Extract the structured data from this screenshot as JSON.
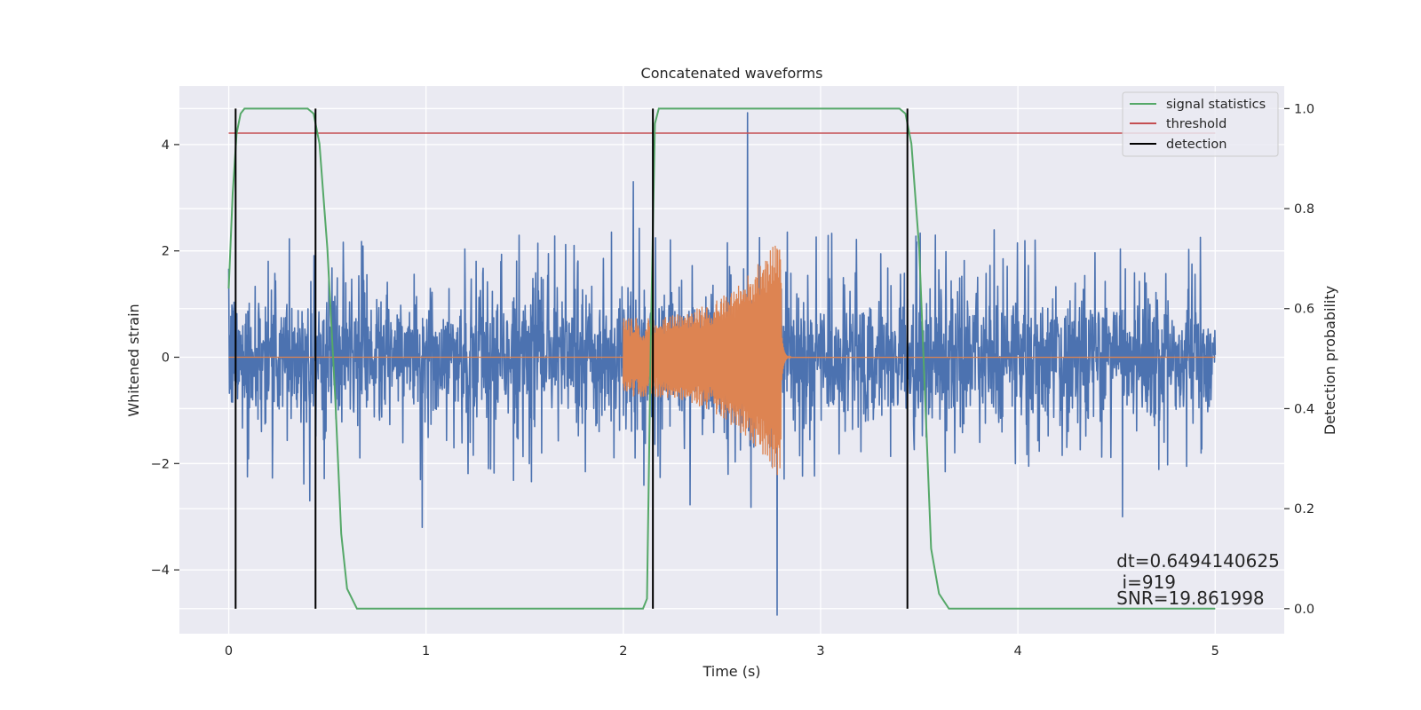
{
  "chart_data": {
    "type": "line",
    "title": "Concatenated waveforms",
    "xlabel": "Time (s)",
    "ylabel_left": "Whitened strain",
    "ylabel_right": "Detection probability",
    "xlim": [
      -0.25,
      5.35
    ],
    "ylim_left": [
      -5.2,
      5.1
    ],
    "ylim_right": [
      -0.05,
      1.045
    ],
    "x_ticks": [
      0,
      1,
      2,
      3,
      4,
      5
    ],
    "y_ticks_left": [
      -4,
      -2,
      0,
      2,
      4
    ],
    "y_ticks_left_labels": [
      "−4",
      "−2",
      "0",
      "2",
      "4"
    ],
    "y_ticks_right": [
      0.0,
      0.2,
      0.4,
      0.6,
      0.8,
      1.0
    ],
    "y_ticks_right_labels": [
      "0.0",
      "0.2",
      "0.4",
      "0.6",
      "0.8",
      "1.0"
    ],
    "grid": true,
    "legend_position": "top-right",
    "legend": [
      "signal statistics",
      "threshold",
      "detection"
    ],
    "series": [
      {
        "name": "strain",
        "axis": "left",
        "color": "#4c72b0",
        "kind": "noise",
        "x_range": [
          0,
          5
        ],
        "core_std": 0.6,
        "typical_peak_range": [
          -2.2,
          2.4
        ],
        "extremes": [
          {
            "x": 2.63,
            "y": 4.6
          },
          {
            "x": 2.78,
            "y": -4.85
          },
          {
            "x": 0.41,
            "y": -2.7
          },
          {
            "x": 0.98,
            "y": -3.2
          },
          {
            "x": 4.53,
            "y": -3.0
          },
          {
            "x": 2.05,
            "y": 3.3
          }
        ]
      },
      {
        "name": "waveform",
        "axis": "left",
        "color": "#dd8452",
        "kind": "chirp",
        "x_range": [
          0,
          5
        ],
        "chirp_start": 2.0,
        "chirp_end": 2.8,
        "amp_start": 0.75,
        "amp_end": 2.4,
        "ringdown_end": 2.85
      },
      {
        "name": "signal statistics",
        "axis": "right",
        "color": "#55a868",
        "x": [
          0.0,
          0.02,
          0.04,
          0.06,
          0.08,
          0.1,
          0.15,
          0.3,
          0.4,
          0.43,
          0.46,
          0.5,
          0.54,
          0.57,
          0.6,
          0.65,
          0.8,
          1.2,
          2.0,
          2.1,
          2.12,
          2.14,
          2.16,
          2.18,
          2.22,
          2.3,
          3.0,
          3.4,
          3.43,
          3.46,
          3.5,
          3.53,
          3.56,
          3.6,
          3.65,
          4.0,
          5.0
        ],
        "y": [
          0.64,
          0.83,
          0.95,
          0.99,
          1.0,
          1.0,
          1.0,
          1.0,
          1.0,
          0.99,
          0.93,
          0.72,
          0.42,
          0.15,
          0.04,
          0.0,
          0.0,
          0.0,
          0.0,
          0.0,
          0.02,
          0.55,
          0.97,
          1.0,
          1.0,
          1.0,
          1.0,
          1.0,
          0.99,
          0.93,
          0.72,
          0.42,
          0.12,
          0.03,
          0.0,
          0.0,
          0.0
        ]
      },
      {
        "name": "threshold",
        "axis": "right",
        "color": "#c44e52",
        "x": [
          0,
          5
        ],
        "y": [
          0.951,
          0.951
        ]
      }
    ],
    "detections": {
      "name": "detection",
      "color": "#000000",
      "x": [
        0.035,
        0.44,
        2.15,
        3.44
      ],
      "y_range": [
        0.0,
        1.0
      ]
    },
    "annotations": [
      {
        "text": "dt=0.6494140625",
        "x": 4.5,
        "y": -3.95
      },
      {
        "text": " i=919",
        "x": 4.5,
        "y": -4.35
      },
      {
        "text": "SNR=19.861998",
        "x": 4.5,
        "y": -4.65
      }
    ]
  }
}
